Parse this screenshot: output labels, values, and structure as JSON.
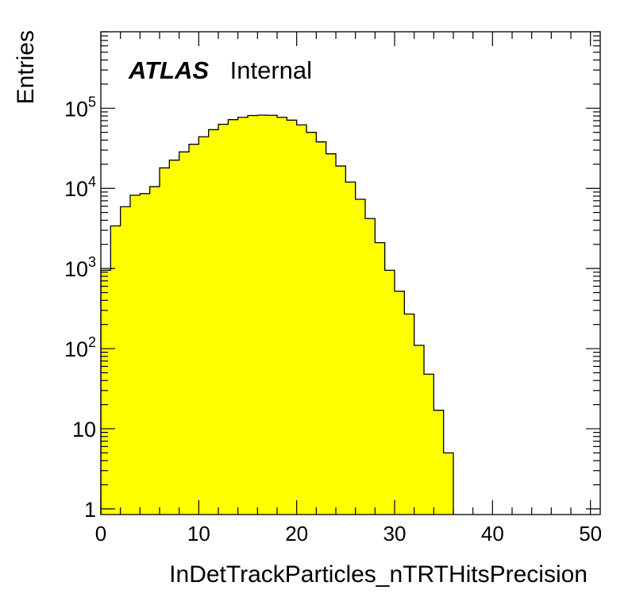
{
  "chart_data": {
    "type": "bar",
    "ylabel": "Entries",
    "xlabel": "InDetTrackParticles_nTRTHitsPrecision",
    "annotation": {
      "bold": "ATLAS",
      "normal": "Internal"
    },
    "xlim": [
      0,
      51
    ],
    "ylim": [
      0.85,
      900000
    ],
    "ylog": true,
    "x_ticks": [
      0,
      10,
      20,
      30,
      40,
      50
    ],
    "x_tick_labels": [
      "0",
      "10",
      "20",
      "30",
      "40",
      "50"
    ],
    "y_ticks": [
      1,
      10,
      100,
      1000,
      10000,
      100000
    ],
    "y_tick_labels": [
      {
        "base": "1",
        "exp": ""
      },
      {
        "base": "10",
        "exp": ""
      },
      {
        "base": "10",
        "exp": "2"
      },
      {
        "base": "10",
        "exp": "3"
      },
      {
        "base": "10",
        "exp": "4"
      },
      {
        "base": "10",
        "exp": "5"
      }
    ],
    "bin_width": 1,
    "bin_edges_start": 0,
    "values": [
      950,
      3400,
      5900,
      8200,
      8600,
      10500,
      18000,
      22500,
      28500,
      35500,
      44000,
      54000,
      63000,
      72000,
      77000,
      81000,
      82000,
      81500,
      77000,
      71000,
      62000,
      50000,
      38000,
      27000,
      19000,
      12000,
      7300,
      4200,
      2100,
      950,
      520,
      270,
      110,
      48,
      17,
      5
    ],
    "fill_color": "#ffff00",
    "line_color": "#000000",
    "grid": false
  }
}
